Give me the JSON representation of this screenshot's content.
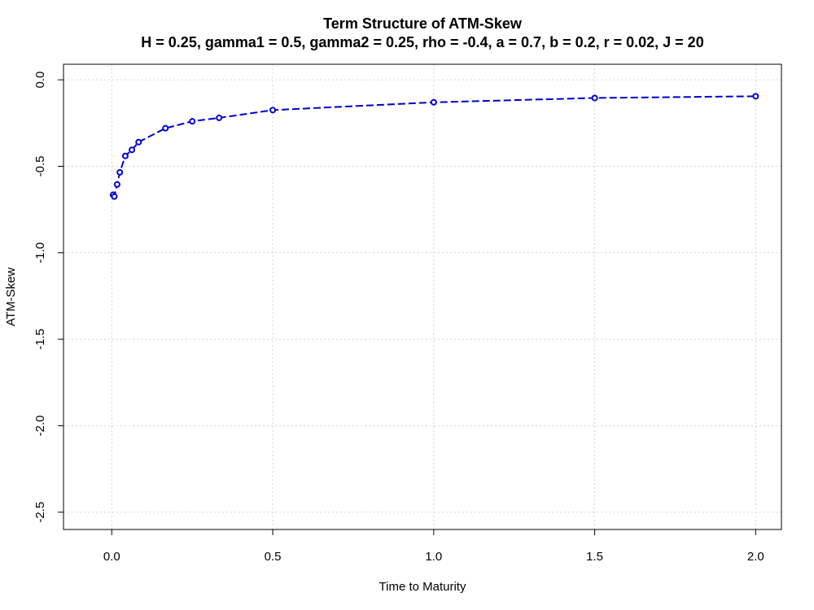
{
  "chart_data": {
    "type": "line",
    "title": "Term Structure of ATM-Skew",
    "subtitle": "H = 0.25, gamma1 = 0.5, gamma2 = 0.25, rho = -0.4, a = 0.7, b = 0.2, r = 0.02, J = 20",
    "xlabel": "Time to Maturity",
    "ylabel": "ATM-Skew",
    "xlim": [
      -0.15,
      2.08
    ],
    "ylim": [
      -2.6,
      0.09
    ],
    "x_ticks": [
      0.0,
      0.5,
      1.0,
      1.5,
      2.0
    ],
    "x_tick_labels": [
      "0.0",
      "0.5",
      "1.0",
      "1.5",
      "2.0"
    ],
    "y_ticks": [
      0.0,
      -0.5,
      -1.0,
      -1.5,
      -2.0,
      -2.5
    ],
    "y_tick_labels": [
      "0.0",
      "-0.5",
      "-1.0",
      "-1.5",
      "-2.0",
      "-2.5"
    ],
    "grid": true,
    "line_style": "dashed with circle markers",
    "series": [
      {
        "color": "#0000cc",
        "x": [
          0.004,
          0.008,
          0.0167,
          0.025,
          0.042,
          0.0625,
          0.0833,
          0.1667,
          0.25,
          0.3333,
          0.5,
          1.0,
          1.5,
          2.0
        ],
        "y": [
          -0.665,
          -0.675,
          -0.605,
          -0.535,
          -0.44,
          -0.405,
          -0.36,
          -0.28,
          -0.24,
          -0.22,
          -0.175,
          -0.13,
          -0.105,
          -0.095
        ]
      }
    ]
  }
}
